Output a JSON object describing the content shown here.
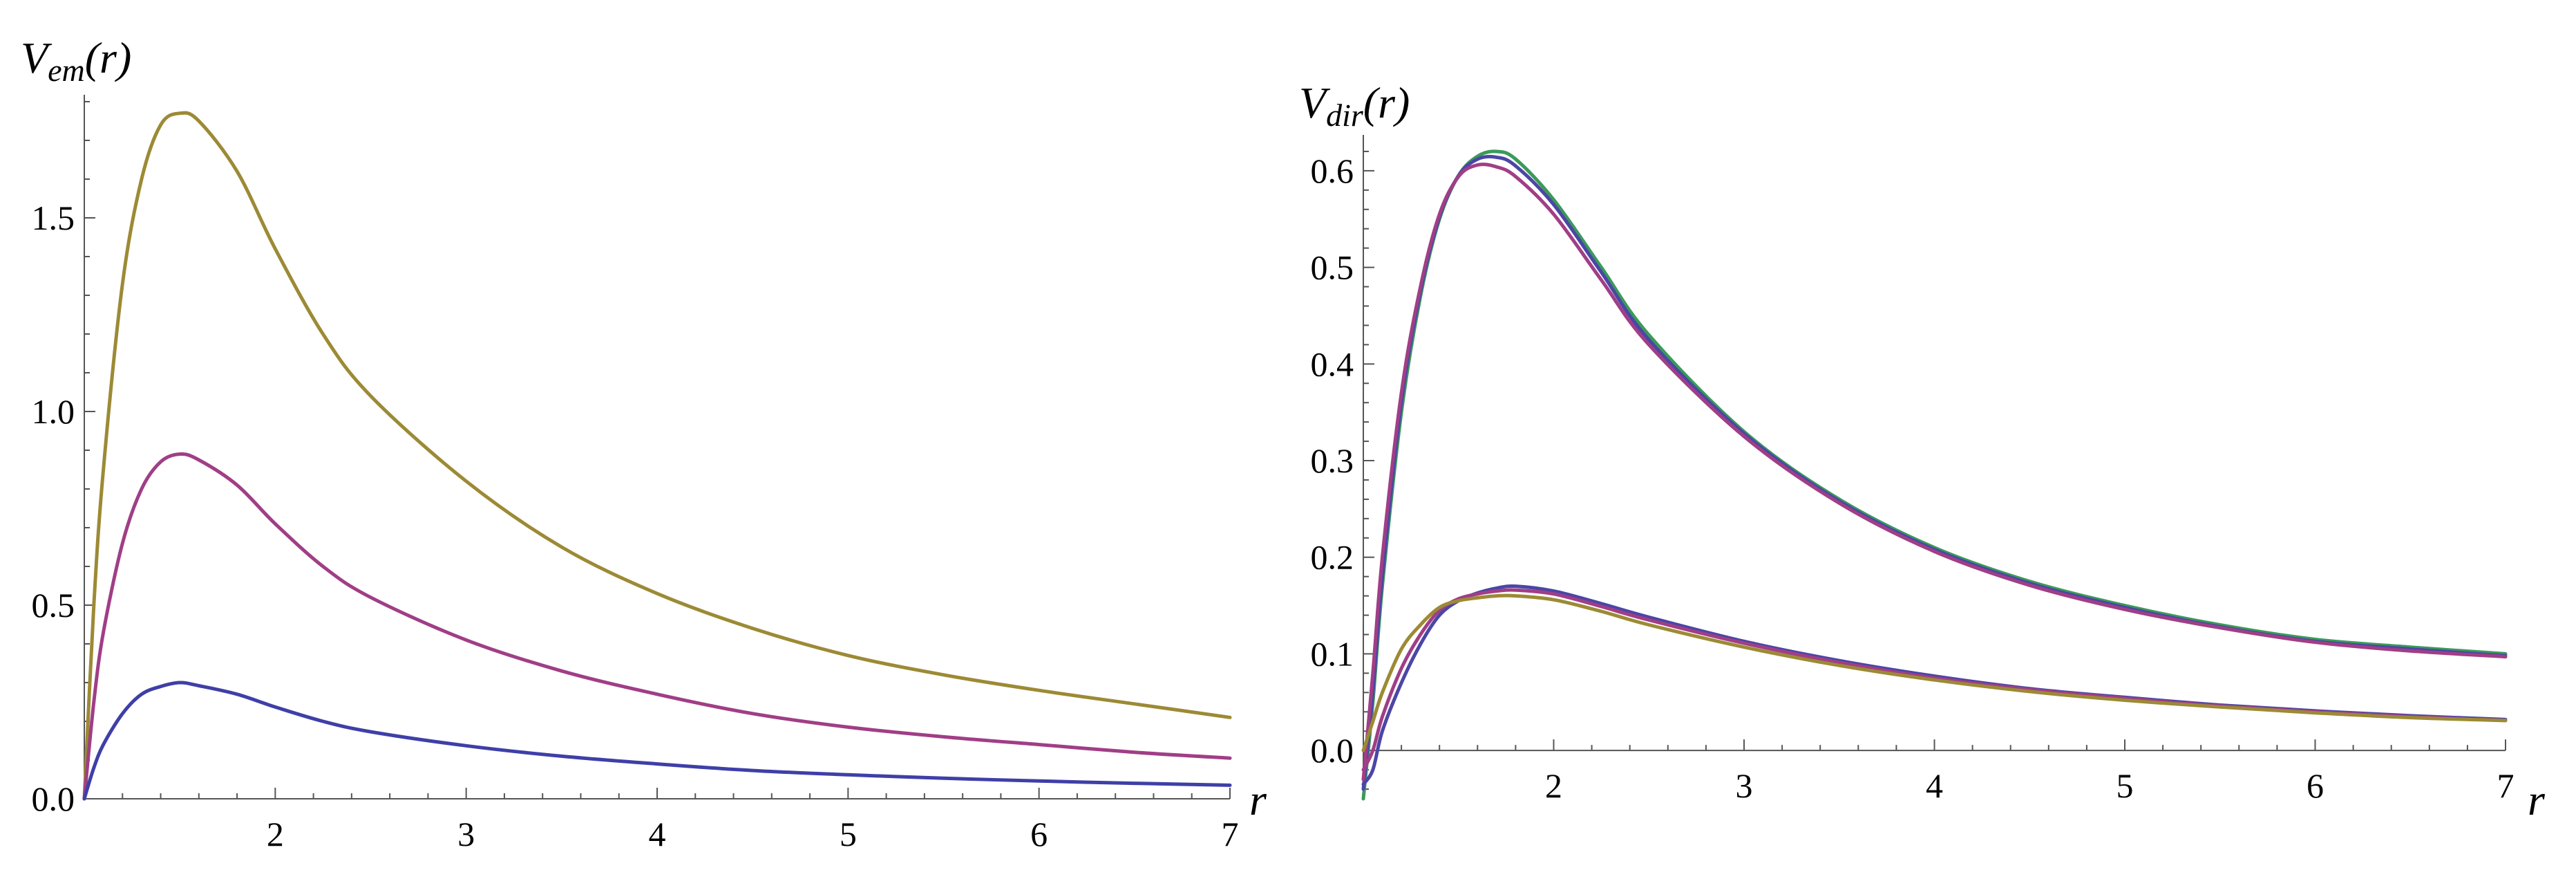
{
  "chart_data": [
    {
      "type": "line",
      "title": "",
      "ylabel": {
        "main": "V",
        "sub": "em",
        "tail": "(r)"
      },
      "xlabel": "r",
      "xlim": [
        1,
        7
      ],
      "ylim": [
        0,
        1.8
      ],
      "x_ticks": [
        "2",
        "3",
        "4",
        "5",
        "6",
        "7"
      ],
      "x_tick_values": [
        2,
        3,
        4,
        5,
        6,
        7
      ],
      "y_ticks": [
        "0.0",
        "0.5",
        "1.0",
        "1.5"
      ],
      "y_tick_values": [
        0,
        0.5,
        1.0,
        1.5
      ],
      "grid": false,
      "series": [
        {
          "color": "#9c8a35",
          "x": [
            1.0,
            1.05,
            1.1,
            1.2,
            1.3,
            1.4,
            1.5,
            1.6,
            1.8,
            2.0,
            2.25,
            2.5,
            3.0,
            3.5,
            4.0,
            4.5,
            5.0,
            5.5,
            6.0,
            6.5,
            7.0
          ],
          "y": [
            0.0,
            0.5,
            0.85,
            1.33,
            1.6,
            1.74,
            1.77,
            1.75,
            1.62,
            1.42,
            1.2,
            1.04,
            0.82,
            0.65,
            0.53,
            0.44,
            0.37,
            0.32,
            0.28,
            0.245,
            0.21
          ]
        },
        {
          "color": "#a03e86",
          "x": [
            1.0,
            1.05,
            1.1,
            1.2,
            1.3,
            1.4,
            1.5,
            1.6,
            1.8,
            2.0,
            2.25,
            2.5,
            3.0,
            3.5,
            4.0,
            4.5,
            5.0,
            5.5,
            6.0,
            6.5,
            7.0
          ],
          "y": [
            0.0,
            0.25,
            0.43,
            0.66,
            0.8,
            0.87,
            0.89,
            0.875,
            0.81,
            0.71,
            0.6,
            0.52,
            0.41,
            0.33,
            0.27,
            0.22,
            0.185,
            0.16,
            0.14,
            0.12,
            0.105
          ]
        },
        {
          "color": "#3f3fa8",
          "x": [
            1.0,
            1.05,
            1.1,
            1.2,
            1.3,
            1.4,
            1.5,
            1.6,
            1.8,
            2.0,
            2.25,
            2.5,
            3.0,
            3.5,
            4.0,
            4.5,
            5.0,
            5.5,
            6.0,
            6.5,
            7.0
          ],
          "y": [
            0.0,
            0.08,
            0.14,
            0.22,
            0.27,
            0.29,
            0.3,
            0.292,
            0.27,
            0.237,
            0.2,
            0.173,
            0.137,
            0.11,
            0.09,
            0.073,
            0.062,
            0.053,
            0.046,
            0.04,
            0.035
          ]
        }
      ]
    },
    {
      "type": "line",
      "title": "",
      "ylabel": {
        "main": "V",
        "sub": "dir",
        "tail": "(r)"
      },
      "xlabel": "r",
      "xlim": [
        1,
        7
      ],
      "ylim": [
        -0.05,
        0.63
      ],
      "x_ticks": [
        "2",
        "3",
        "4",
        "5",
        "6",
        "7"
      ],
      "x_tick_values": [
        2,
        3,
        4,
        5,
        6,
        7
      ],
      "y_ticks": [
        "0.0",
        "0.1",
        "0.2",
        "0.3",
        "0.4",
        "0.5",
        "0.6"
      ],
      "y_tick_values": [
        0,
        0.1,
        0.2,
        0.3,
        0.4,
        0.5,
        0.6
      ],
      "grid": false,
      "series": [
        {
          "color": "#3b9a5a",
          "x": [
            1.0,
            1.05,
            1.1,
            1.2,
            1.3,
            1.4,
            1.5,
            1.6,
            1.7,
            1.8,
            2.0,
            2.25,
            2.5,
            3.0,
            3.5,
            4.0,
            4.5,
            5.0,
            5.5,
            6.0,
            6.5,
            7.0
          ],
          "y": [
            -0.05,
            0.05,
            0.17,
            0.35,
            0.47,
            0.55,
            0.595,
            0.615,
            0.62,
            0.612,
            0.57,
            0.5,
            0.43,
            0.33,
            0.26,
            0.21,
            0.175,
            0.15,
            0.13,
            0.115,
            0.107,
            0.1
          ]
        },
        {
          "color": "#4b46a6",
          "x": [
            1.0,
            1.05,
            1.1,
            1.2,
            1.3,
            1.4,
            1.5,
            1.6,
            1.7,
            1.8,
            2.0,
            2.25,
            2.5,
            3.0,
            3.5,
            4.0,
            4.5,
            5.0,
            5.5,
            6.0,
            6.5,
            7.0
          ],
          "y": [
            -0.04,
            0.06,
            0.18,
            0.36,
            0.475,
            0.552,
            0.595,
            0.612,
            0.614,
            0.605,
            0.565,
            0.495,
            0.425,
            0.328,
            0.258,
            0.208,
            0.173,
            0.148,
            0.128,
            0.113,
            0.105,
            0.098
          ]
        },
        {
          "color": "#a03e86",
          "x": [
            1.0,
            1.05,
            1.1,
            1.2,
            1.3,
            1.4,
            1.5,
            1.6,
            1.7,
            1.8,
            2.0,
            2.25,
            2.5,
            3.0,
            3.5,
            4.0,
            4.5,
            5.0,
            5.5,
            6.0,
            6.5,
            7.0
          ],
          "y": [
            -0.03,
            0.08,
            0.2,
            0.37,
            0.48,
            0.555,
            0.594,
            0.606,
            0.604,
            0.594,
            0.555,
            0.487,
            0.42,
            0.325,
            0.256,
            0.206,
            0.171,
            0.146,
            0.127,
            0.112,
            0.103,
            0.097
          ]
        },
        {
          "color": "#4b46a6",
          "x": [
            1.0,
            1.05,
            1.1,
            1.2,
            1.3,
            1.4,
            1.5,
            1.6,
            1.7,
            1.8,
            2.0,
            2.25,
            2.5,
            3.0,
            3.5,
            4.0,
            4.5,
            5.0,
            5.5,
            6.0,
            6.5,
            7.0
          ],
          "y": [
            -0.035,
            -0.02,
            0.02,
            0.07,
            0.11,
            0.14,
            0.155,
            0.163,
            0.168,
            0.17,
            0.165,
            0.152,
            0.138,
            0.113,
            0.093,
            0.077,
            0.064,
            0.055,
            0.047,
            0.041,
            0.036,
            0.032
          ]
        },
        {
          "color": "#a03e86",
          "x": [
            1.0,
            1.05,
            1.1,
            1.2,
            1.3,
            1.4,
            1.5,
            1.6,
            1.7,
            1.8,
            2.0,
            2.25,
            2.5,
            3.0,
            3.5,
            4.0,
            4.5,
            5.0,
            5.5,
            6.0,
            6.5,
            7.0
          ],
          "y": [
            -0.02,
            0.0,
            0.035,
            0.085,
            0.12,
            0.145,
            0.157,
            0.162,
            0.165,
            0.166,
            0.162,
            0.149,
            0.135,
            0.111,
            0.091,
            0.075,
            0.063,
            0.054,
            0.046,
            0.04,
            0.035,
            0.031
          ]
        },
        {
          "color": "#9c8a35",
          "x": [
            1.0,
            1.05,
            1.1,
            1.2,
            1.3,
            1.4,
            1.5,
            1.6,
            1.7,
            1.8,
            2.0,
            2.25,
            2.5,
            3.0,
            3.5,
            4.0,
            4.5,
            5.0,
            5.5,
            6.0,
            6.5,
            7.0
          ],
          "y": [
            0.0,
            0.03,
            0.06,
            0.105,
            0.13,
            0.148,
            0.155,
            0.158,
            0.16,
            0.16,
            0.156,
            0.144,
            0.13,
            0.107,
            0.088,
            0.073,
            0.061,
            0.052,
            0.045,
            0.039,
            0.034,
            0.031
          ]
        }
      ]
    }
  ]
}
